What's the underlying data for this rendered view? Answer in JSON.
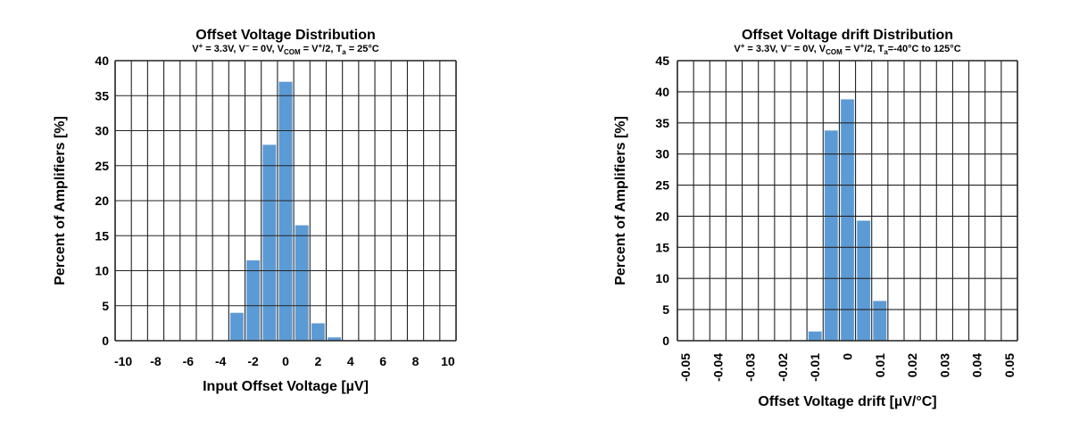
{
  "chart_data": [
    {
      "type": "bar",
      "title": "Offset Voltage Distribution",
      "subtitle_parts": {
        "a": "V",
        "b": "+",
        "c": " = 3.3V, V",
        "d": "−",
        "e": " = 0V, V",
        "f": "COM",
        "g": " = V",
        "h": "+",
        "i": "/2, T",
        "j": "a",
        "k": " = 25°C"
      },
      "xlabel": "Input Offset Voltage [µV]",
      "ylabel": "Percent of Amplifiers [%]",
      "xlim": [
        -10,
        10
      ],
      "ylim": [
        0,
        40
      ],
      "xticks": [
        "-10",
        "-8",
        "-6",
        "-4",
        "-2",
        "0",
        "2",
        "4",
        "6",
        "8",
        "10"
      ],
      "yticks": [
        "0",
        "5",
        "10",
        "15",
        "20",
        "25",
        "30",
        "35",
        "40"
      ],
      "bin_width": 1,
      "grid": true,
      "bar_color": "#5b9bd5",
      "x": [
        -3,
        -2,
        -1,
        0,
        1,
        2,
        3
      ],
      "values": [
        4,
        11.5,
        28,
        37,
        16.5,
        2.5,
        0.5
      ]
    },
    {
      "type": "bar",
      "title": "Offset Voltage drift Distribution",
      "subtitle_parts": {
        "a": "V",
        "b": "+",
        "c": " = 3.3V, V",
        "d": "−",
        "e": " = 0V, V",
        "f": "COM",
        "g": " = V",
        "h": "+",
        "i": "/2, T",
        "j": "a",
        "k": "=-40°C to 125°C"
      },
      "xlabel": "Offset Voltage drift [µV/°C]",
      "ylabel": "Percent of Amplifiers [%]",
      "xlim": [
        -0.05,
        0.05
      ],
      "ylim": [
        0,
        45
      ],
      "xticks": [
        "-0.05",
        "-0.04",
        "-0.03",
        "-0.02",
        "-0.01",
        "0",
        "0.01",
        "0.02",
        "0.03",
        "0.04",
        "0.05"
      ],
      "yticks": [
        "0",
        "5",
        "10",
        "15",
        "20",
        "25",
        "30",
        "35",
        "40",
        "45"
      ],
      "bin_width": 0.005,
      "grid": true,
      "bar_color": "#5b9bd5",
      "x": [
        -0.01,
        -0.005,
        0,
        0.005,
        0.01
      ],
      "values": [
        1.5,
        33.8,
        38.8,
        19.3,
        6.4
      ]
    }
  ]
}
